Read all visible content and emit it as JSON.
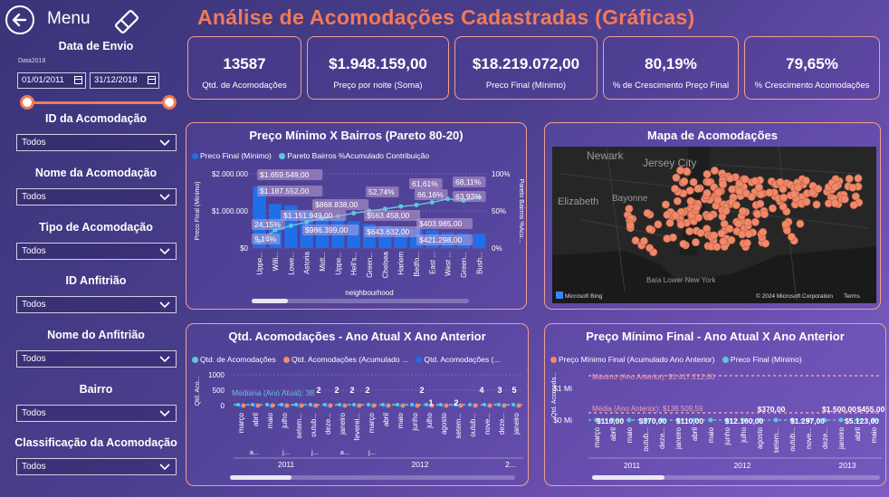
{
  "header": {
    "menu_label": "Menu",
    "title": "Análise de Acomodações Cadastradas (Gráficas)"
  },
  "filters": {
    "date_title": "Data de Envio",
    "date_small_label": "Data2018",
    "start_date": "01/01/2011",
    "end_date": "31/12/2018",
    "dropdowns": [
      {
        "label": "ID da Acomodação",
        "value": "Todos"
      },
      {
        "label": "Nome da Acomodação",
        "value": "Todos"
      },
      {
        "label": "Tipo de Acomodação",
        "value": "Todos"
      },
      {
        "label": "ID Anfitrião",
        "value": "Todos"
      },
      {
        "label": "Nome do Anfitrião",
        "value": "Todos"
      },
      {
        "label": "Bairro",
        "value": "Todos"
      },
      {
        "label": "Classificação da Acomodação",
        "value": "Todos"
      }
    ]
  },
  "kpis": [
    {
      "value": "13587",
      "label": "Qtd. de Acomodações"
    },
    {
      "value": "$1.948.159,00",
      "label": "Preço por noite (Soma)"
    },
    {
      "value": "$18.219.072,00",
      "label": "Preco Final (Mínimo)"
    },
    {
      "value": "80,19%",
      "label": "% de Crescimento Preço Final"
    },
    {
      "value": "79,65%",
      "label": "% Crescimento Acomodações"
    }
  ],
  "pareto": {
    "title": "Preço Mínimo X Bairros (Pareto 80-20)",
    "legend": [
      "Preco Final (Mínimo)",
      "Pareto Bairros %Acumulado Contribuição"
    ],
    "colors": {
      "bar": "#1f6fe8",
      "line": "#5ec8d8"
    },
    "y_left_ticks": [
      "$2.000.000",
      "$1.000.000",
      "$0"
    ],
    "y_right_ticks": [
      "100%",
      "50%",
      "0%"
    ],
    "y_left_label": "Preco Final (Mínimo)",
    "y_right_label": "Pareto Bairros %Acu...",
    "x_label": "neighbourhood",
    "categories": [
      "Uppe...",
      "Willi...",
      "Lowe...",
      "Astoria",
      "Midt...",
      "Uppe...",
      "Hell's...",
      "Green...",
      "Chelsea",
      "Harlem",
      "Bedfo...",
      "East ...",
      "West ...",
      "Green...",
      "Bush..."
    ],
    "bar_values": [
      1659549,
      1187552,
      1151949,
      986399,
      868838,
      800000,
      720000,
      643632,
      600000,
      563458,
      520000,
      480000,
      421298,
      403985,
      380000
    ],
    "line_values": [
      9.14,
      24.15,
      30,
      35,
      40,
      43,
      47,
      50,
      52.74,
      56,
      58,
      61.61,
      66.16,
      63.93,
      68.11
    ],
    "data_labels": [
      "$1.659.549,00",
      "$1.187.552,00",
      "$1.151.949,00",
      "$986.399,00",
      "$868.838,00",
      "$643.632,00",
      "$563.458,00",
      "$421.298,00",
      "$403.985,00",
      "9,14%",
      "24,15%",
      "52,74%",
      "61,61%",
      "66,16%",
      "63,93%",
      "68,11%"
    ]
  },
  "map": {
    "title": "Mapa de Acomodações",
    "place_labels": [
      "Newark",
      "Jersey City",
      "Elizabeth",
      "Bayonne",
      "Baía Lower New York"
    ],
    "attribution_left": "Microsoft Bing",
    "attribution_right": "© 2024 Microsoft Corporation",
    "terms": "Terms",
    "dot_color": "#f0896a"
  },
  "qtd_chart": {
    "title": "Qtd. Acomodações - Ano Atual X Ano Anterior",
    "legend": [
      "Qtd. de Acomodações",
      "Qtd. Acomodações (Acumulado ...",
      "Qtd. Acomodações (..."
    ],
    "legend_colors": [
      "#5ec8d8",
      "#f0896a",
      "#1f6fe8"
    ],
    "y_ticks": [
      "1000",
      "500",
      "0"
    ],
    "y_label": "Qtd. Aco...",
    "median_label": "Mediana (Ano Atual): 38",
    "point_labels": [
      "2",
      "2",
      "2",
      "2",
      "2",
      "1",
      "2",
      "4",
      "3",
      "5"
    ],
    "months": [
      "março",
      "abril",
      "maio",
      "julho",
      "setem...",
      "outub...",
      "deze...",
      "janeiro",
      "feverei...",
      "março",
      "abril",
      "maio",
      "junho",
      "julho",
      "agosto",
      "setem...",
      "outub...",
      "nove...",
      "deze...",
      "janeiro"
    ],
    "sub_labels": [
      "a...",
      "j...",
      "j...",
      "a...",
      "j..."
    ],
    "years": [
      "2011",
      "2012",
      "2..."
    ]
  },
  "preco_chart": {
    "title": "Preço Mínimo Final - Ano Atual X Ano Anterior",
    "legend": [
      "Preço Mínimo Final (Acumulado Ano Anterior)",
      "Preco Final (Mínimo)"
    ],
    "legend_colors": [
      "#f0896a",
      "#5ec8d8"
    ],
    "y_ticks": [
      "$1 Mi",
      "$0 Mi"
    ],
    "y_label": "Qtd. Acomoda...",
    "max_label": "Máximo (Ano Anterior): $1.417.212,00",
    "avg_label": "Média (Ano Anterior): $138.509,59",
    "top_values": [
      "$370,00",
      "$1.500,00",
      "$455,00"
    ],
    "bottom_values": [
      "$110,00",
      "$370,00",
      "$110,00",
      "$12.160,00",
      "$1.297,00",
      "$5.123,00"
    ],
    "months": [
      "março",
      "abril",
      "maio",
      "outub...",
      "deze...",
      "janeiro",
      "abril",
      "maio",
      "junho",
      "julho",
      "agosto",
      "setem...",
      "outub...",
      "nove...",
      "deze...",
      "janeiro",
      "abril",
      "maio"
    ],
    "years": [
      "2011",
      "2012",
      "2013"
    ]
  }
}
